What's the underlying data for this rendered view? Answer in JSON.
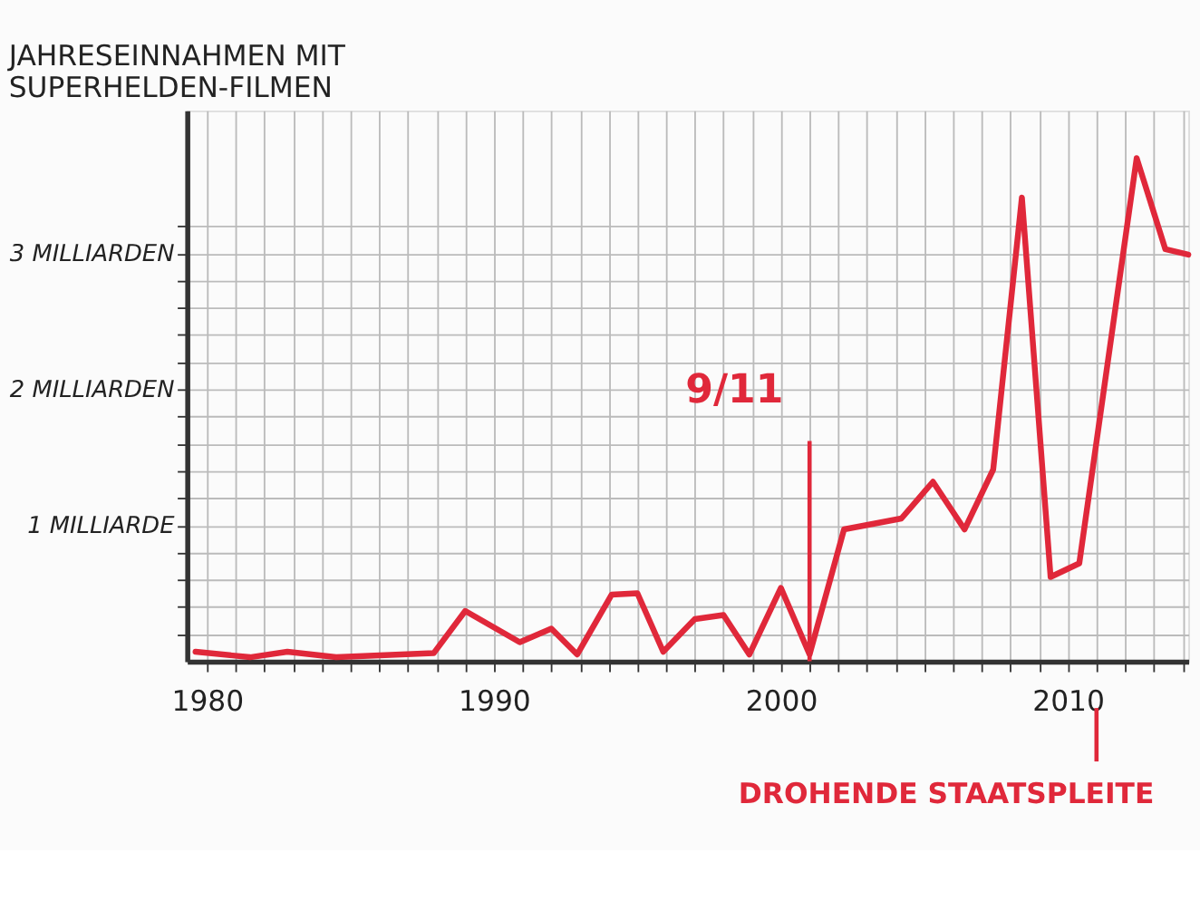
{
  "chart_data": {
    "type": "line",
    "title": "JAHRESEINNAHMEN MIT SUPERHELDEN-FILMEN",
    "x": [
      1979.6,
      1981.5,
      1982.8,
      1984.5,
      1987.9,
      1989.0,
      1990.9,
      1992.0,
      1992.9,
      1994.1,
      1995.0,
      1995.9,
      1997.0,
      1998.0,
      1998.9,
      2000.0,
      2001.0,
      2002.2,
      2004.2,
      2005.3,
      2006.4,
      2007.4,
      2008.4,
      2009.4,
      2010.4,
      2012.4,
      2013.4,
      2014.2
    ],
    "series": [
      {
        "color": "#e0283a",
        "values": [
          0.07,
          0.03,
          0.07,
          0.03,
          0.06,
          0.37,
          0.14,
          0.24,
          0.05,
          0.49,
          0.5,
          0.07,
          0.31,
          0.34,
          0.05,
          0.54,
          0.05,
          0.97,
          1.05,
          1.32,
          0.97,
          1.41,
          3.41,
          0.62,
          0.72,
          3.7,
          3.03,
          2.99
        ]
      }
    ],
    "xlim": [
      1979.3,
      2014.2
    ],
    "ylim": [
      0,
      4.05
    ],
    "xticks": [
      1980,
      {
        "value": 1981,
        "label": null
      },
      {
        "value": 1982,
        "label": null
      },
      {
        "value": 1983,
        "label": null
      },
      {
        "value": 1984,
        "label": null
      },
      {
        "value": 1985,
        "label": null
      },
      {
        "value": 1986,
        "label": null
      },
      {
        "value": 1987,
        "label": null
      },
      {
        "value": 1988,
        "label": null
      },
      {
        "value": 1989,
        "label": null
      },
      1990,
      {
        "value": 1991,
        "label": null
      },
      {
        "value": 1992,
        "label": null
      },
      {
        "value": 1993,
        "label": null
      },
      {
        "value": 1994,
        "label": null
      },
      {
        "value": 1995,
        "label": null
      },
      {
        "value": 1996,
        "label": null
      },
      {
        "value": 1997,
        "label": null
      },
      {
        "value": 1998,
        "label": null
      },
      {
        "value": 1999,
        "label": null
      },
      2000,
      {
        "value": 2001,
        "label": null
      },
      {
        "value": 2002,
        "label": null
      },
      {
        "value": 2003,
        "label": null
      },
      {
        "value": 2004,
        "label": null
      },
      {
        "value": 2005,
        "label": null
      },
      {
        "value": 2006,
        "label": null
      },
      {
        "value": 2007,
        "label": null
      },
      {
        "value": 2008,
        "label": null
      },
      {
        "value": 2009,
        "label": null
      },
      2010,
      {
        "value": 2011,
        "label": null
      },
      {
        "value": 2012,
        "label": null
      },
      {
        "value": 2013,
        "label": null
      },
      {
        "value": 2014,
        "label": null
      }
    ],
    "yticks": [
      {
        "value": 0.2,
        "label": null
      },
      {
        "value": 0.4,
        "label": null
      },
      {
        "value": 0.6,
        "label": null
      },
      {
        "value": 0.8,
        "label": null
      },
      {
        "value": 1,
        "label": "1 MILLIARDE"
      },
      {
        "value": 1.2,
        "label": null
      },
      {
        "value": 1.4,
        "label": null
      },
      {
        "value": 1.6,
        "label": null
      },
      {
        "value": 1.8,
        "label": null
      },
      {
        "value": 2,
        "label": "2 MILLIARDEN"
      },
      {
        "value": 2.2,
        "label": null
      },
      {
        "value": 2.4,
        "label": null
      },
      {
        "value": 2.6,
        "label": null
      },
      {
        "value": 2.8,
        "label": null
      },
      {
        "value": 3,
        "label": "3 MILLIARDEN"
      },
      {
        "value": 3.2,
        "label": null
      }
    ],
    "annotations": [
      "9/11"
    ],
    "ref_lines": [
      {
        "axis": "x",
        "value": 2001,
        "color": "#e0283a"
      },
      {
        "axis": "x",
        "value": 2011,
        "label": "DROHENDE STAATSPLEITE",
        "color": "#e0283a"
      }
    ],
    "grid": true,
    "marker": "none",
    "line_style": "solid"
  }
}
